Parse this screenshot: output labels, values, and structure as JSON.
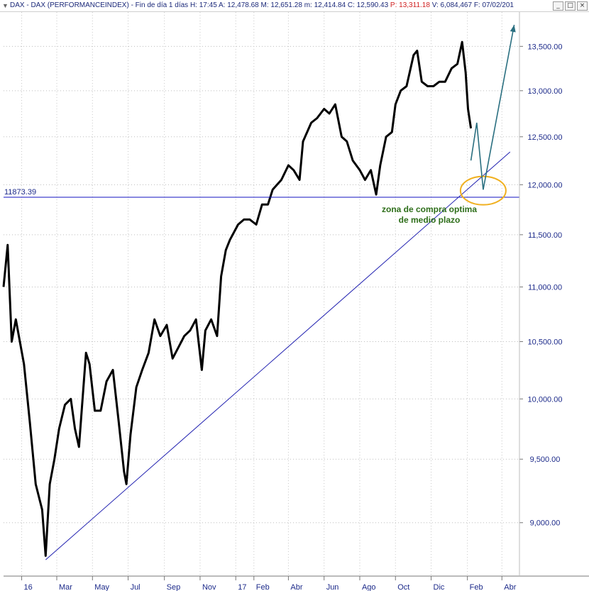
{
  "window": {
    "title_prefix": "DAX - DAX (PERFORMANCEINDEX) - Fin de día 1 días",
    "stats": [
      {
        "label": "H:",
        "value": "17:45",
        "color": "normal"
      },
      {
        "label": "A:",
        "value": "12,478.68",
        "color": "normal"
      },
      {
        "label": "M:",
        "value": "12,651.28",
        "color": "normal"
      },
      {
        "label": "m:",
        "value": "12,414.84",
        "color": "normal"
      },
      {
        "label": "C:",
        "value": "12,590.43",
        "color": "normal"
      },
      {
        "label": "P:",
        "value": "13,311.18",
        "color": "red"
      },
      {
        "label": "V:",
        "value": "6,084,467",
        "color": "normal"
      },
      {
        "label": "F:",
        "value": "07/02/201",
        "color": "normal"
      }
    ],
    "buttons": [
      "_",
      "□",
      "×"
    ]
  },
  "chart_data": {
    "type": "line",
    "title": "DAX - DAX (PERFORMANCEINDEX)",
    "y_axis": {
      "ticks": [
        9000,
        9500,
        10000,
        10500,
        11000,
        11500,
        12000,
        12500,
        13000,
        13500
      ],
      "tick_labels": [
        "9,000.00",
        "9,500.00",
        "10,000.00",
        "10,500.00",
        "11,000.00",
        "11,500.00",
        "12,000.00",
        "12,500.00",
        "13,000.00",
        "13,500.00"
      ],
      "range": [
        8600,
        13900
      ],
      "scale": "log"
    },
    "x_axis": {
      "labels": [
        "16",
        "Mar",
        "May",
        "Jul",
        "Sep",
        "Nov",
        "17",
        "Feb",
        "Abr",
        "Jun",
        "Ago",
        "Oct",
        "Dic",
        "Feb",
        "Abr"
      ],
      "range": [
        "2015-12-01",
        "2018-05-01"
      ]
    },
    "series": [
      {
        "values": [
          [
            "2015-12-01",
            11000
          ],
          [
            "2015-12-08",
            11400
          ],
          [
            "2015-12-15",
            10500
          ],
          [
            "2015-12-22",
            10700
          ],
          [
            "2016-01-05",
            10300
          ],
          [
            "2016-01-15",
            9800
          ],
          [
            "2016-01-25",
            9300
          ],
          [
            "2016-02-05",
            9100
          ],
          [
            "2016-02-11",
            8750
          ],
          [
            "2016-02-18",
            9300
          ],
          [
            "2016-02-26",
            9500
          ],
          [
            "2016-03-05",
            9750
          ],
          [
            "2016-03-15",
            9950
          ],
          [
            "2016-03-25",
            10000
          ],
          [
            "2016-04-01",
            9750
          ],
          [
            "2016-04-08",
            9600
          ],
          [
            "2016-04-20",
            10400
          ],
          [
            "2016-04-26",
            10300
          ],
          [
            "2016-05-05",
            9900
          ],
          [
            "2016-05-15",
            9900
          ],
          [
            "2016-05-25",
            10150
          ],
          [
            "2016-06-05",
            10250
          ],
          [
            "2016-06-15",
            9800
          ],
          [
            "2016-06-24",
            9400
          ],
          [
            "2016-06-28",
            9300
          ],
          [
            "2016-07-05",
            9700
          ],
          [
            "2016-07-15",
            10100
          ],
          [
            "2016-07-25",
            10250
          ],
          [
            "2016-08-05",
            10400
          ],
          [
            "2016-08-15",
            10700
          ],
          [
            "2016-08-25",
            10550
          ],
          [
            "2016-09-05",
            10650
          ],
          [
            "2016-09-15",
            10350
          ],
          [
            "2016-09-25",
            10450
          ],
          [
            "2016-10-05",
            10550
          ],
          [
            "2016-10-15",
            10600
          ],
          [
            "2016-10-25",
            10700
          ],
          [
            "2016-11-04",
            10250
          ],
          [
            "2016-11-10",
            10600
          ],
          [
            "2016-11-20",
            10700
          ],
          [
            "2016-11-30",
            10550
          ],
          [
            "2016-12-07",
            11100
          ],
          [
            "2016-12-15",
            11350
          ],
          [
            "2016-12-22",
            11450
          ],
          [
            "2017-01-05",
            11600
          ],
          [
            "2017-01-15",
            11650
          ],
          [
            "2017-01-25",
            11650
          ],
          [
            "2017-02-05",
            11600
          ],
          [
            "2017-02-15",
            11800
          ],
          [
            "2017-02-25",
            11800
          ],
          [
            "2017-03-05",
            11950
          ],
          [
            "2017-03-20",
            12050
          ],
          [
            "2017-04-01",
            12200
          ],
          [
            "2017-04-10",
            12150
          ],
          [
            "2017-04-20",
            12050
          ],
          [
            "2017-04-26",
            12450
          ],
          [
            "2017-05-10",
            12650
          ],
          [
            "2017-05-20",
            12700
          ],
          [
            "2017-06-01",
            12800
          ],
          [
            "2017-06-10",
            12750
          ],
          [
            "2017-06-20",
            12850
          ],
          [
            "2017-07-01",
            12500
          ],
          [
            "2017-07-10",
            12450
          ],
          [
            "2017-07-20",
            12250
          ],
          [
            "2017-08-01",
            12150
          ],
          [
            "2017-08-10",
            12050
          ],
          [
            "2017-08-20",
            12150
          ],
          [
            "2017-08-29",
            11900
          ],
          [
            "2017-09-05",
            12200
          ],
          [
            "2017-09-15",
            12500
          ],
          [
            "2017-09-25",
            12550
          ],
          [
            "2017-10-01",
            12850
          ],
          [
            "2017-10-10",
            13000
          ],
          [
            "2017-10-20",
            13050
          ],
          [
            "2017-11-01",
            13400
          ],
          [
            "2017-11-07",
            13450
          ],
          [
            "2017-11-15",
            13100
          ],
          [
            "2017-11-25",
            13050
          ],
          [
            "2017-12-05",
            13050
          ],
          [
            "2017-12-15",
            13100
          ],
          [
            "2017-12-25",
            13100
          ],
          [
            "2018-01-05",
            13250
          ],
          [
            "2018-01-15",
            13300
          ],
          [
            "2018-01-23",
            13550
          ],
          [
            "2018-01-29",
            13200
          ],
          [
            "2018-02-02",
            12800
          ],
          [
            "2018-02-07",
            12590
          ]
        ]
      }
    ],
    "support_level": {
      "value": 11873.39,
      "label": "11873.39"
    },
    "trendline": {
      "from": [
        "2016-02-11",
        8720
      ],
      "to": [
        "2018-04-15",
        12340
      ]
    },
    "projection": [
      [
        "2018-02-07",
        12250
      ],
      [
        "2018-02-17",
        12650
      ],
      [
        "2018-02-28",
        11950
      ],
      [
        "2018-04-22",
        13750
      ]
    ],
    "highlight_zone": {
      "center": [
        "2018-02-28",
        11940
      ],
      "note": "zona de compra optima de medio plazo"
    },
    "grid": true
  }
}
